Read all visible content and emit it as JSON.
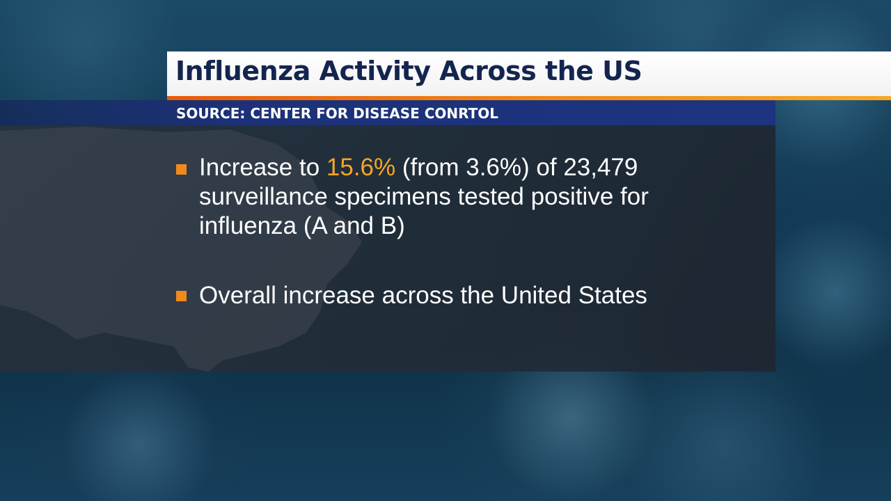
{
  "title": "Influenza Activity Across the US",
  "source": "SOURCE: CENTER FOR DISEASE CONRTOL",
  "bullets": [
    {
      "line1_pre": "Increase to ",
      "line1_highlight": "15.6%",
      "line1_post": " (from 3.6%) of 23,479",
      "line2": "surveillance specimens tested positive for",
      "line3": "influenza (A and B)"
    },
    {
      "text": "Overall increase across the United States"
    }
  ],
  "colors": {
    "title_text": "#13254f",
    "accent_orange": "#f08a1c",
    "highlight": "#f5a623",
    "source_bar": "#1d3480"
  }
}
